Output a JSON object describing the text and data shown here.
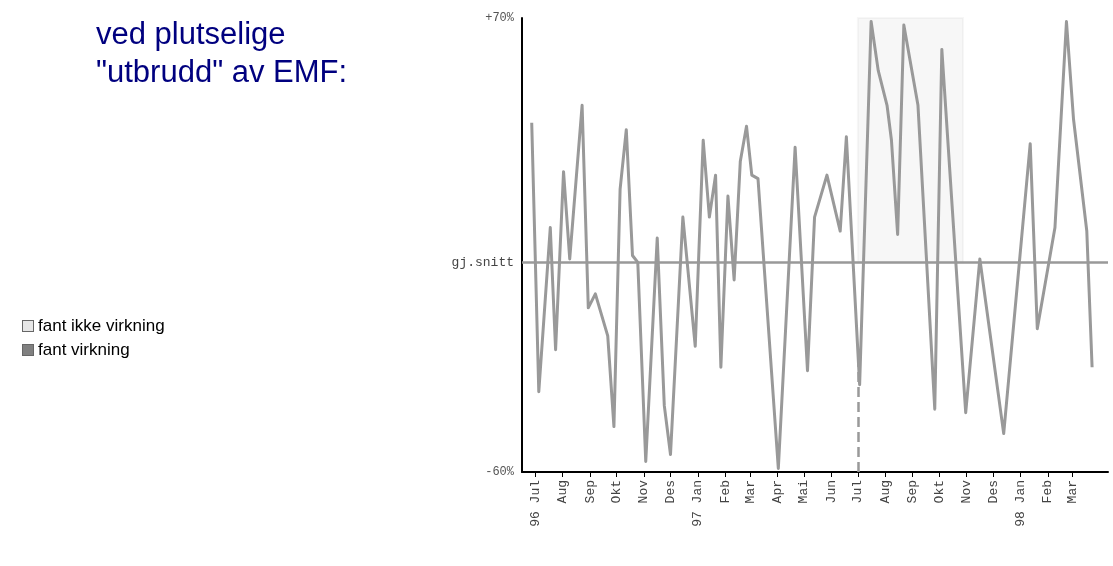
{
  "chart_data": {
    "type": "line",
    "title": "ved plutselige\n\"utbrudd\" av EMF:",
    "annotations": [
      "fant ikke virkning",
      "fant virkning"
    ],
    "x": [
      "1996-06-27",
      "1996-07-05",
      "1996-07-18",
      "1996-07-24",
      "1996-08-02",
      "1996-08-09",
      "1996-08-23",
      "1996-08-30",
      "1996-09-07",
      "1996-09-21",
      "1996-09-28",
      "1996-10-05",
      "1996-10-12",
      "1996-10-19",
      "1996-10-25",
      "1996-11-03",
      "1996-11-16",
      "1996-11-24",
      "1996-12-01",
      "1996-12-15",
      "1996-12-29",
      "1997-01-07",
      "1997-01-14",
      "1997-01-21",
      "1997-01-27",
      "1997-02-04",
      "1997-02-11",
      "1997-02-18",
      "1997-02-25",
      "1997-03-03",
      "1997-03-10",
      "1997-04-02",
      "1997-04-21",
      "1997-05-05",
      "1997-05-13",
      "1997-05-27",
      "1997-06-11",
      "1997-06-18",
      "1997-07-03",
      "1997-07-16",
      "1997-07-24",
      "1997-08-03",
      "1997-08-08",
      "1997-08-15",
      "1997-08-22",
      "1997-09-07",
      "1997-09-26",
      "1997-10-04",
      "1997-10-31",
      "1997-11-16",
      "1997-12-13",
      "1998-01-12",
      "1998-01-20",
      "1998-02-09",
      "1998-02-22",
      "1998-03-02",
      "1998-03-17",
      "1998-03-23"
    ],
    "series": [
      {
        "color": "#999999",
        "values": [
          40,
          -37,
          10,
          -25,
          26,
          1,
          45,
          -13,
          -9,
          -21,
          -47,
          21,
          38,
          2,
          0,
          -57,
          7,
          -41,
          -55,
          13,
          -24,
          35,
          13,
          25,
          -30,
          19,
          -5,
          29,
          39,
          25,
          24,
          -59,
          33,
          -31,
          13,
          25,
          9,
          36,
          -35,
          69,
          55,
          45,
          35,
          8,
          68,
          45,
          -42,
          61,
          -43,
          1,
          -49,
          34,
          -19,
          10,
          69,
          41,
          9,
          -30
        ]
      }
    ],
    "xlim": [
      "1996-06-16",
      "1998-04-10"
    ],
    "xticks": [
      {
        "value": "1996-07-01",
        "label": "96 Jul"
      },
      {
        "value": "1996-08-01",
        "label": "Aug"
      },
      {
        "value": "1996-09-01",
        "label": "Sep"
      },
      {
        "value": "1996-10-01",
        "label": "Okt"
      },
      {
        "value": "1996-11-01",
        "label": "Nov"
      },
      {
        "value": "1996-12-01",
        "label": "Des"
      },
      {
        "value": "1997-01-01",
        "label": "97 Jan"
      },
      {
        "value": "1997-02-01",
        "label": "Feb"
      },
      {
        "value": "1997-03-01",
        "label": "Mar"
      },
      {
        "value": "1997-04-01",
        "label": "Apr"
      },
      {
        "value": "1997-05-01",
        "label": "Mai"
      },
      {
        "value": "1997-06-01",
        "label": "Jun"
      },
      {
        "value": "1997-07-01",
        "label": "Jul"
      },
      {
        "value": "1997-08-01",
        "label": "Aug"
      },
      {
        "value": "1997-09-01",
        "label": "Sep"
      },
      {
        "value": "1997-10-01",
        "label": "Okt"
      },
      {
        "value": "1997-11-01",
        "label": "Nov"
      },
      {
        "value": "1997-12-01",
        "label": "Des"
      },
      {
        "value": "1998-01-01",
        "label": "98 Jan"
      },
      {
        "value": "1998-02-01",
        "label": "Feb"
      },
      {
        "value": "1998-03-01",
        "label": "Mar"
      }
    ],
    "ylim": [
      -60,
      70
    ],
    "yticks": [
      {
        "value": -60,
        "label": "-60%"
      },
      {
        "value": 70,
        "label": "+70%"
      }
    ],
    "ref_lines": [
      {
        "axis": "y",
        "value": 0,
        "label": "gj.snitt",
        "color": "#999999",
        "line_style": "solid"
      },
      {
        "axis": "x",
        "value": "1997-07-01",
        "color": "#999999",
        "line_style": "dashed"
      }
    ],
    "bands": [
      {
        "axis": "x",
        "from": "1997-07-01",
        "to": "1997-10-28",
        "color": "#999999"
      }
    ],
    "grid": false,
    "marker": "none",
    "line_style": "solid"
  }
}
